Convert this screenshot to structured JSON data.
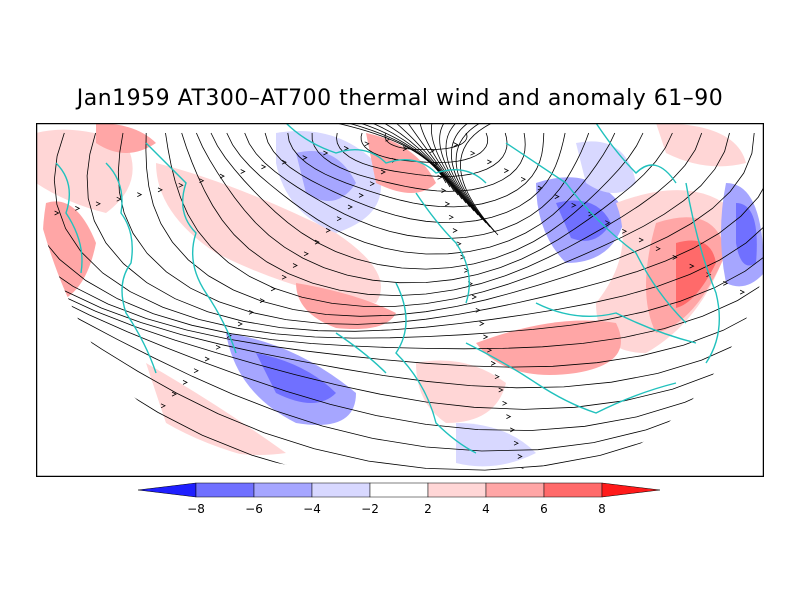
{
  "title": "Jan1959 AT300–AT700 thermal wind and anomaly 61–90",
  "colors": {
    "coast": "#21c1bd",
    "streamline": "#000000",
    "neg_strong": "#1f1fff",
    "neg_3": "#7070ff",
    "neg_2": "#a6a6ff",
    "neg_1": "#d8d8ff",
    "pos_1": "#ffd6d6",
    "pos_2": "#ffa6a6",
    "pos_3": "#ff6a6a",
    "pos_strong": "#ff1a1a"
  },
  "colorbar": {
    "ticks": [
      "−8",
      "−6",
      "−4",
      "−2",
      "2",
      "4",
      "6",
      "8"
    ],
    "colors": [
      "#1f1fff",
      "#7070ff",
      "#a6a6ff",
      "#d8d8ff",
      "#ffffff",
      "#ffd6d6",
      "#ffa6a6",
      "#ff6a6a",
      "#ff1a1a"
    ]
  }
}
